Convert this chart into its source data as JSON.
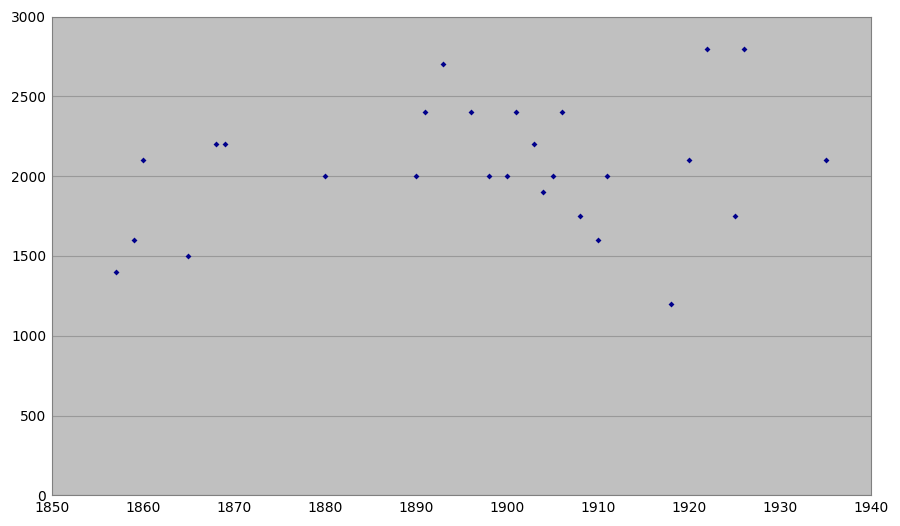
{
  "x": [
    1857,
    1859,
    1860,
    1865,
    1868,
    1869,
    1880,
    1890,
    1891,
    1893,
    1896,
    1898,
    1900,
    1901,
    1903,
    1904,
    1905,
    1906,
    1908,
    1910,
    1911,
    1918,
    1920,
    1922,
    1925,
    1926,
    1935
  ],
  "y": [
    1400,
    1600,
    2100,
    1500,
    2200,
    2200,
    2000,
    2000,
    2400,
    2700,
    2400,
    2000,
    2000,
    2400,
    2200,
    1900,
    2000,
    2400,
    1750,
    1600,
    2000,
    1200,
    2100,
    2800,
    1750,
    2800,
    2100
  ],
  "xlim": [
    1850,
    1940
  ],
  "ylim": [
    0,
    3000
  ],
  "xticks": [
    1850,
    1860,
    1870,
    1880,
    1890,
    1900,
    1910,
    1920,
    1930,
    1940
  ],
  "yticks": [
    0,
    500,
    1000,
    1500,
    2000,
    2500,
    3000
  ],
  "marker_color": "#00008B",
  "marker": "D",
  "marker_size": 3,
  "bg_color": "#C0C0C0",
  "fig_bg_color": "#FFFFFF",
  "grid_color": "#999999",
  "figsize": [
    9.0,
    5.26
  ]
}
